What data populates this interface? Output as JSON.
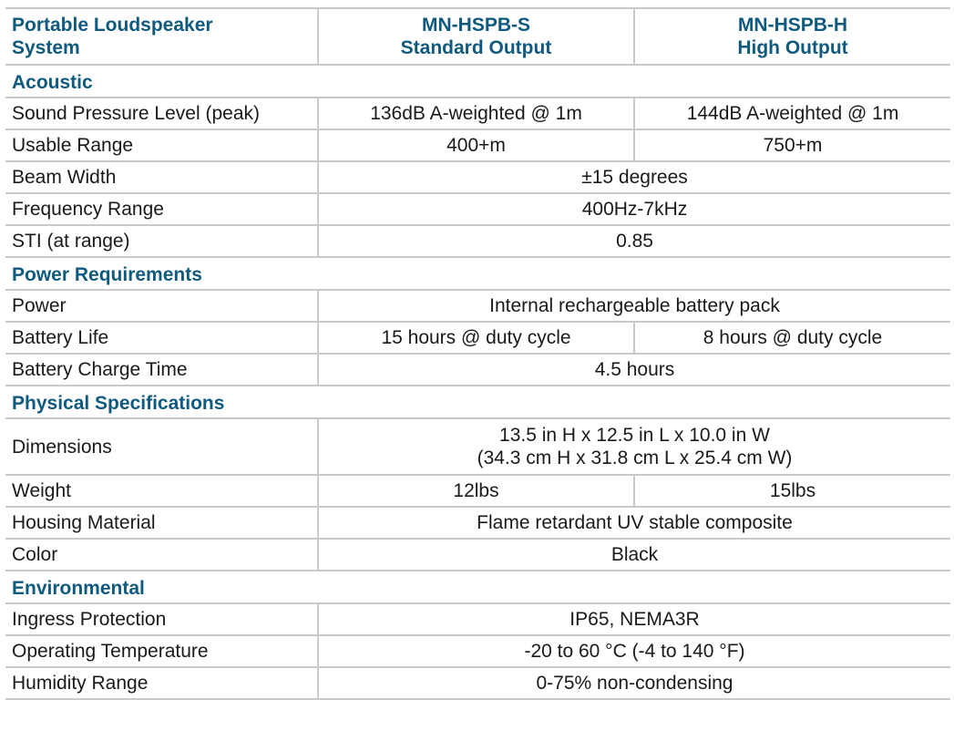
{
  "header": {
    "col1_line1": "Portable Loudspeaker",
    "col1_line2": "System",
    "col2_line1": "MN-HSPB-S",
    "col2_line2": "Standard Output",
    "col3_line1": "MN-HSPB-H",
    "col3_line2": "High Output"
  },
  "sections": {
    "acoustic": "Acoustic",
    "power": "Power  Requirements",
    "physical": "Physical  Specifications",
    "environmental": "Environmental"
  },
  "rows": {
    "spl": {
      "label": "Sound Pressure Level (peak)",
      "s": "136dB A-weighted @ 1m",
      "h": "144dB A-weighted @ 1m"
    },
    "range": {
      "label": "Usable Range",
      "s": "400+m",
      "h": "750+m"
    },
    "beam": {
      "label": "Beam Width",
      "value": "±15 degrees"
    },
    "freq": {
      "label": "Frequency Range",
      "value": "400Hz-7kHz"
    },
    "sti": {
      "label": "STI  (at range)",
      "value": "0.85"
    },
    "power": {
      "label": "Power",
      "value": "Internal rechargeable battery pack"
    },
    "battery_life": {
      "label": "Battery Life",
      "s": "15 hours @ duty cycle",
      "h": "8 hours @ duty cycle"
    },
    "charge": {
      "label": "Battery Charge Time",
      "value": "4.5 hours"
    },
    "dimensions": {
      "label": "Dimensions",
      "line1": "13.5 in H x 12.5 in L x 10.0 in W",
      "line2": "(34.3 cm H x 31.8 cm L x 25.4 cm W)"
    },
    "weight": {
      "label": "Weight",
      "s": "12lbs",
      "h": "15lbs"
    },
    "housing": {
      "label": "Housing Material",
      "value": "Flame retardant UV  stable composite"
    },
    "color": {
      "label": "Color",
      "value": "Black"
    },
    "ingress": {
      "label": "Ingress Protection",
      "value": "IP65, NEMA3R"
    },
    "temp": {
      "label": "Operating Temperature",
      "value": "-20 to 60 °C  (-4 to 140 °F)"
    },
    "humidity": {
      "label": "Humidity Range",
      "value": "0-75% non-condensing"
    }
  }
}
